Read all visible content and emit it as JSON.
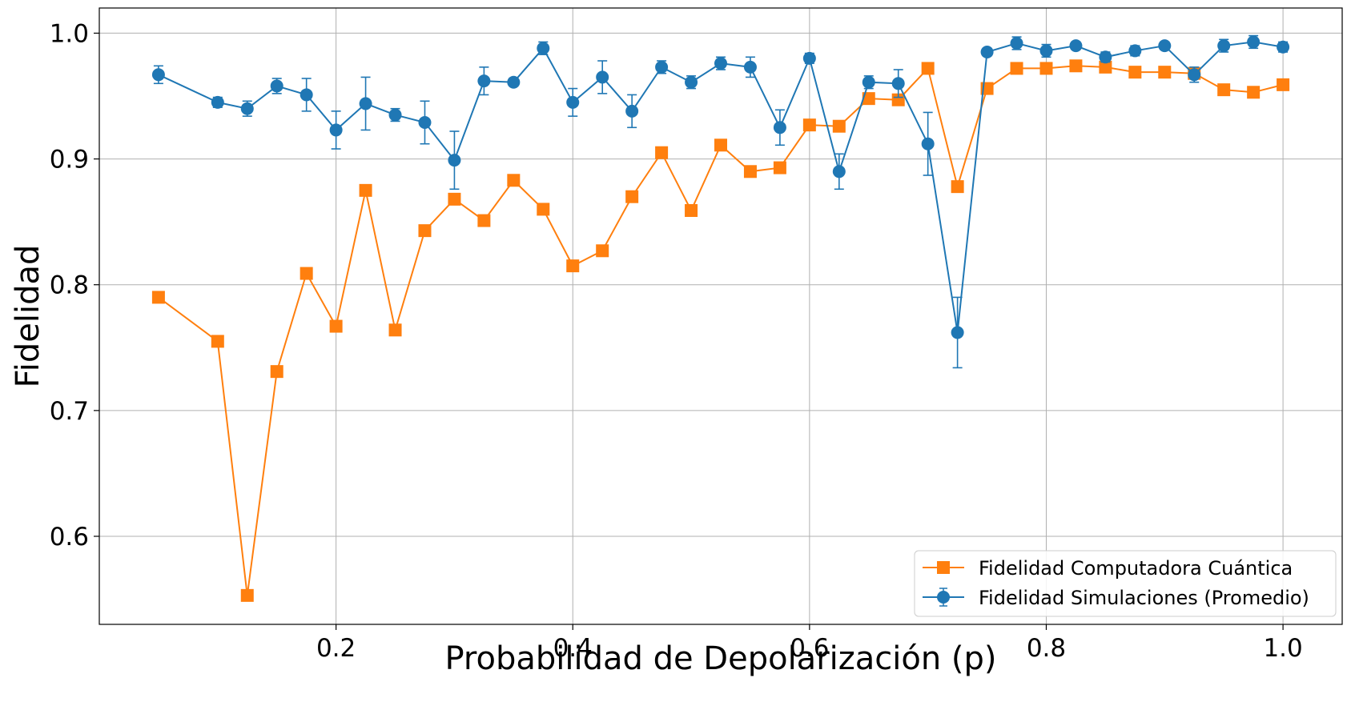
{
  "chart_data": {
    "type": "line",
    "xlabel": "Probabilidad de Depolarización (p)",
    "ylabel": "Fidelidad",
    "xlim": [
      0.0,
      1.05
    ],
    "ylim": [
      0.53,
      1.02
    ],
    "grid": true,
    "legend_position": "bottom-right",
    "x_ticks": [
      {
        "value": 0.2,
        "label": "0.2"
      },
      {
        "value": 0.4,
        "label": "0.4"
      },
      {
        "value": 0.6,
        "label": "0.6"
      },
      {
        "value": 0.8,
        "label": "0.8"
      },
      {
        "value": 1.0,
        "label": "1.0"
      }
    ],
    "y_ticks": [
      {
        "value": 0.6,
        "label": "0.6"
      },
      {
        "value": 0.7,
        "label": "0.7"
      },
      {
        "value": 0.8,
        "label": "0.8"
      },
      {
        "value": 0.9,
        "label": "0.9"
      },
      {
        "value": 1.0,
        "label": "1.0"
      }
    ],
    "x": [
      0.05,
      0.1,
      0.125,
      0.15,
      0.175,
      0.2,
      0.225,
      0.25,
      0.275,
      0.3,
      0.325,
      0.35,
      0.375,
      0.4,
      0.425,
      0.45,
      0.475,
      0.5,
      0.525,
      0.55,
      0.575,
      0.6,
      0.625,
      0.65,
      0.675,
      0.7,
      0.725,
      0.75,
      0.775,
      0.8,
      0.825,
      0.85,
      0.875,
      0.9,
      0.925,
      0.95,
      0.975,
      1.0
    ],
    "series": [
      {
        "name": "Fidelidad Computadora Cuántica",
        "color": "#ff7f0e",
        "marker": "square",
        "values": [
          0.79,
          0.755,
          0.553,
          0.731,
          0.809,
          0.767,
          0.875,
          0.764,
          0.843,
          0.868,
          0.851,
          0.883,
          0.86,
          0.815,
          0.827,
          0.87,
          0.905,
          0.859,
          0.911,
          0.89,
          0.893,
          0.927,
          0.926,
          0.948,
          0.947,
          0.972,
          0.878,
          0.956,
          0.972,
          0.972,
          0.974,
          0.973,
          0.969,
          0.969,
          0.968,
          0.955,
          0.953,
          0.959
        ]
      },
      {
        "name": "Fidelidad Simulaciones (Promedio)",
        "color": "#1f77b4",
        "marker": "circle",
        "values": [
          0.967,
          0.945,
          0.94,
          0.958,
          0.951,
          0.923,
          0.944,
          0.935,
          0.929,
          0.899,
          0.962,
          0.961,
          0.988,
          0.945,
          0.965,
          0.938,
          0.973,
          0.961,
          0.976,
          0.973,
          0.925,
          0.98,
          0.89,
          0.961,
          0.96,
          0.912,
          0.762,
          0.985,
          0.992,
          0.986,
          0.99,
          0.981,
          0.986,
          0.99,
          0.967,
          0.99,
          0.993,
          0.989
        ],
        "errors": [
          0.007,
          0.004,
          0.006,
          0.006,
          0.013,
          0.015,
          0.021,
          0.005,
          0.017,
          0.023,
          0.011,
          0.003,
          0.005,
          0.011,
          0.013,
          0.013,
          0.005,
          0.005,
          0.005,
          0.008,
          0.014,
          0.004,
          0.014,
          0.005,
          0.011,
          0.025,
          0.028,
          0.003,
          0.005,
          0.005,
          0.003,
          0.004,
          0.004,
          0.003,
          0.006,
          0.005,
          0.005,
          0.004
        ]
      }
    ]
  }
}
